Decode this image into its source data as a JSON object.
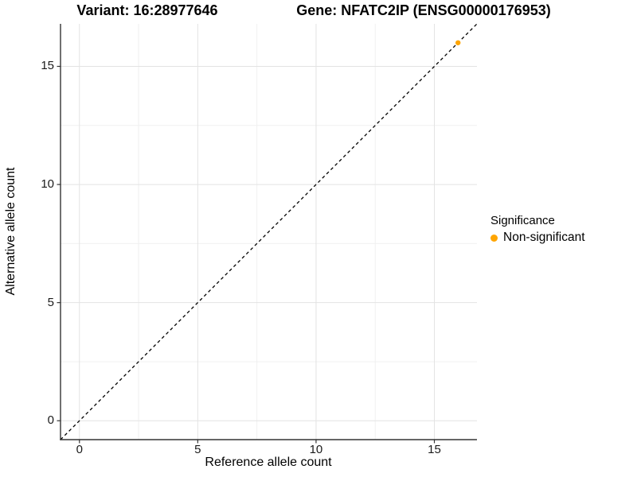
{
  "header": {
    "variant_title": "Variant: 16:28977646",
    "gene_title": "Gene: NFATC2IP (ENSG00000176953)"
  },
  "axes": {
    "x_label": "Reference allele count",
    "y_label": "Alternative allele count"
  },
  "legend": {
    "title": "Significance",
    "position": "right",
    "items": [
      {
        "label": "Non-significant",
        "color": "#FFA500"
      }
    ]
  },
  "colors": {
    "background": "#FFFFFF",
    "axis_line": "#333333",
    "major_grid": "#E3E3E3",
    "minor_grid": "#F0F0F0",
    "reference_line": "#000000",
    "point": "#FFA500",
    "text": "#000000"
  },
  "chart_data": {
    "type": "scatter",
    "title": "Variant: 16:28977646 | Gene: NFATC2IP (ENSG00000176953)",
    "xlabel": "Reference allele count",
    "ylabel": "Alternative allele count",
    "xlim": [
      -0.8,
      16.8
    ],
    "ylim": [
      -0.8,
      16.8
    ],
    "x_ticks": [
      0,
      5,
      10,
      15
    ],
    "y_ticks": [
      0,
      5,
      10,
      15
    ],
    "x_minor_ticks": [
      2.5,
      7.5,
      12.5
    ],
    "y_minor_ticks": [
      2.5,
      7.5,
      12.5
    ],
    "grid": true,
    "legend_position": "right",
    "series": [
      {
        "name": "Non-significant",
        "color": "#FFA500",
        "points": [
          {
            "x": 16,
            "y": 16
          }
        ]
      }
    ],
    "reference_line": {
      "type": "identity",
      "style": "dashed",
      "color": "#000000",
      "from": [
        -0.8,
        -0.8
      ],
      "to": [
        16.8,
        16.8
      ]
    }
  }
}
